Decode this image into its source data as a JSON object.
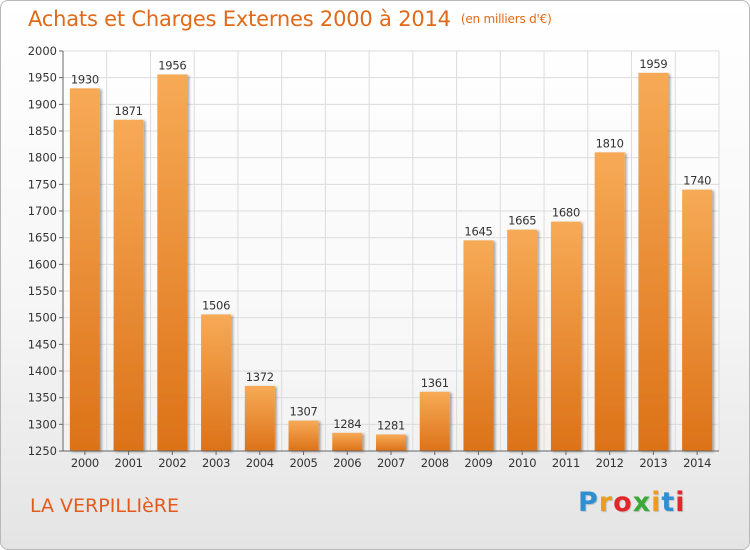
{
  "title": "Achats et Charges Externes 2000 à 2014",
  "subtitle": "(en milliers d'€)",
  "location": "LA VERPILLIèRE",
  "brand": {
    "letters": [
      "P",
      "r",
      "o",
      "x",
      "i",
      "t",
      "i"
    ],
    "colors": [
      "#2f8fd0",
      "#f29a1c",
      "#e2262b",
      "#3aa935",
      "#f29a1c",
      "#2f8fd0",
      "#e2262b"
    ]
  },
  "colors": {
    "bar_top": "#f7aa56",
    "bar_bottom": "#dc7218",
    "grid": "#dcdcdc",
    "axis": "#666666",
    "label": "#333333"
  },
  "chart_data": {
    "type": "bar",
    "title": "Achats et Charges Externes 2000 à 2014",
    "subtitle": "(en milliers d'€)",
    "categories": [
      "2000",
      "2001",
      "2002",
      "2003",
      "2004",
      "2005",
      "2006",
      "2007",
      "2008",
      "2009",
      "2010",
      "2011",
      "2012",
      "2013",
      "2014"
    ],
    "values": [
      1930,
      1871,
      1956,
      1506,
      1372,
      1307,
      1284,
      1281,
      1361,
      1645,
      1665,
      1680,
      1810,
      1959,
      1740
    ],
    "ylim": [
      1250,
      2000
    ],
    "yticks": [
      1250,
      1300,
      1350,
      1400,
      1450,
      1500,
      1550,
      1600,
      1650,
      1700,
      1750,
      1800,
      1850,
      1900,
      1950,
      2000
    ],
    "grid": true,
    "legend": "none",
    "data_labels": true
  }
}
